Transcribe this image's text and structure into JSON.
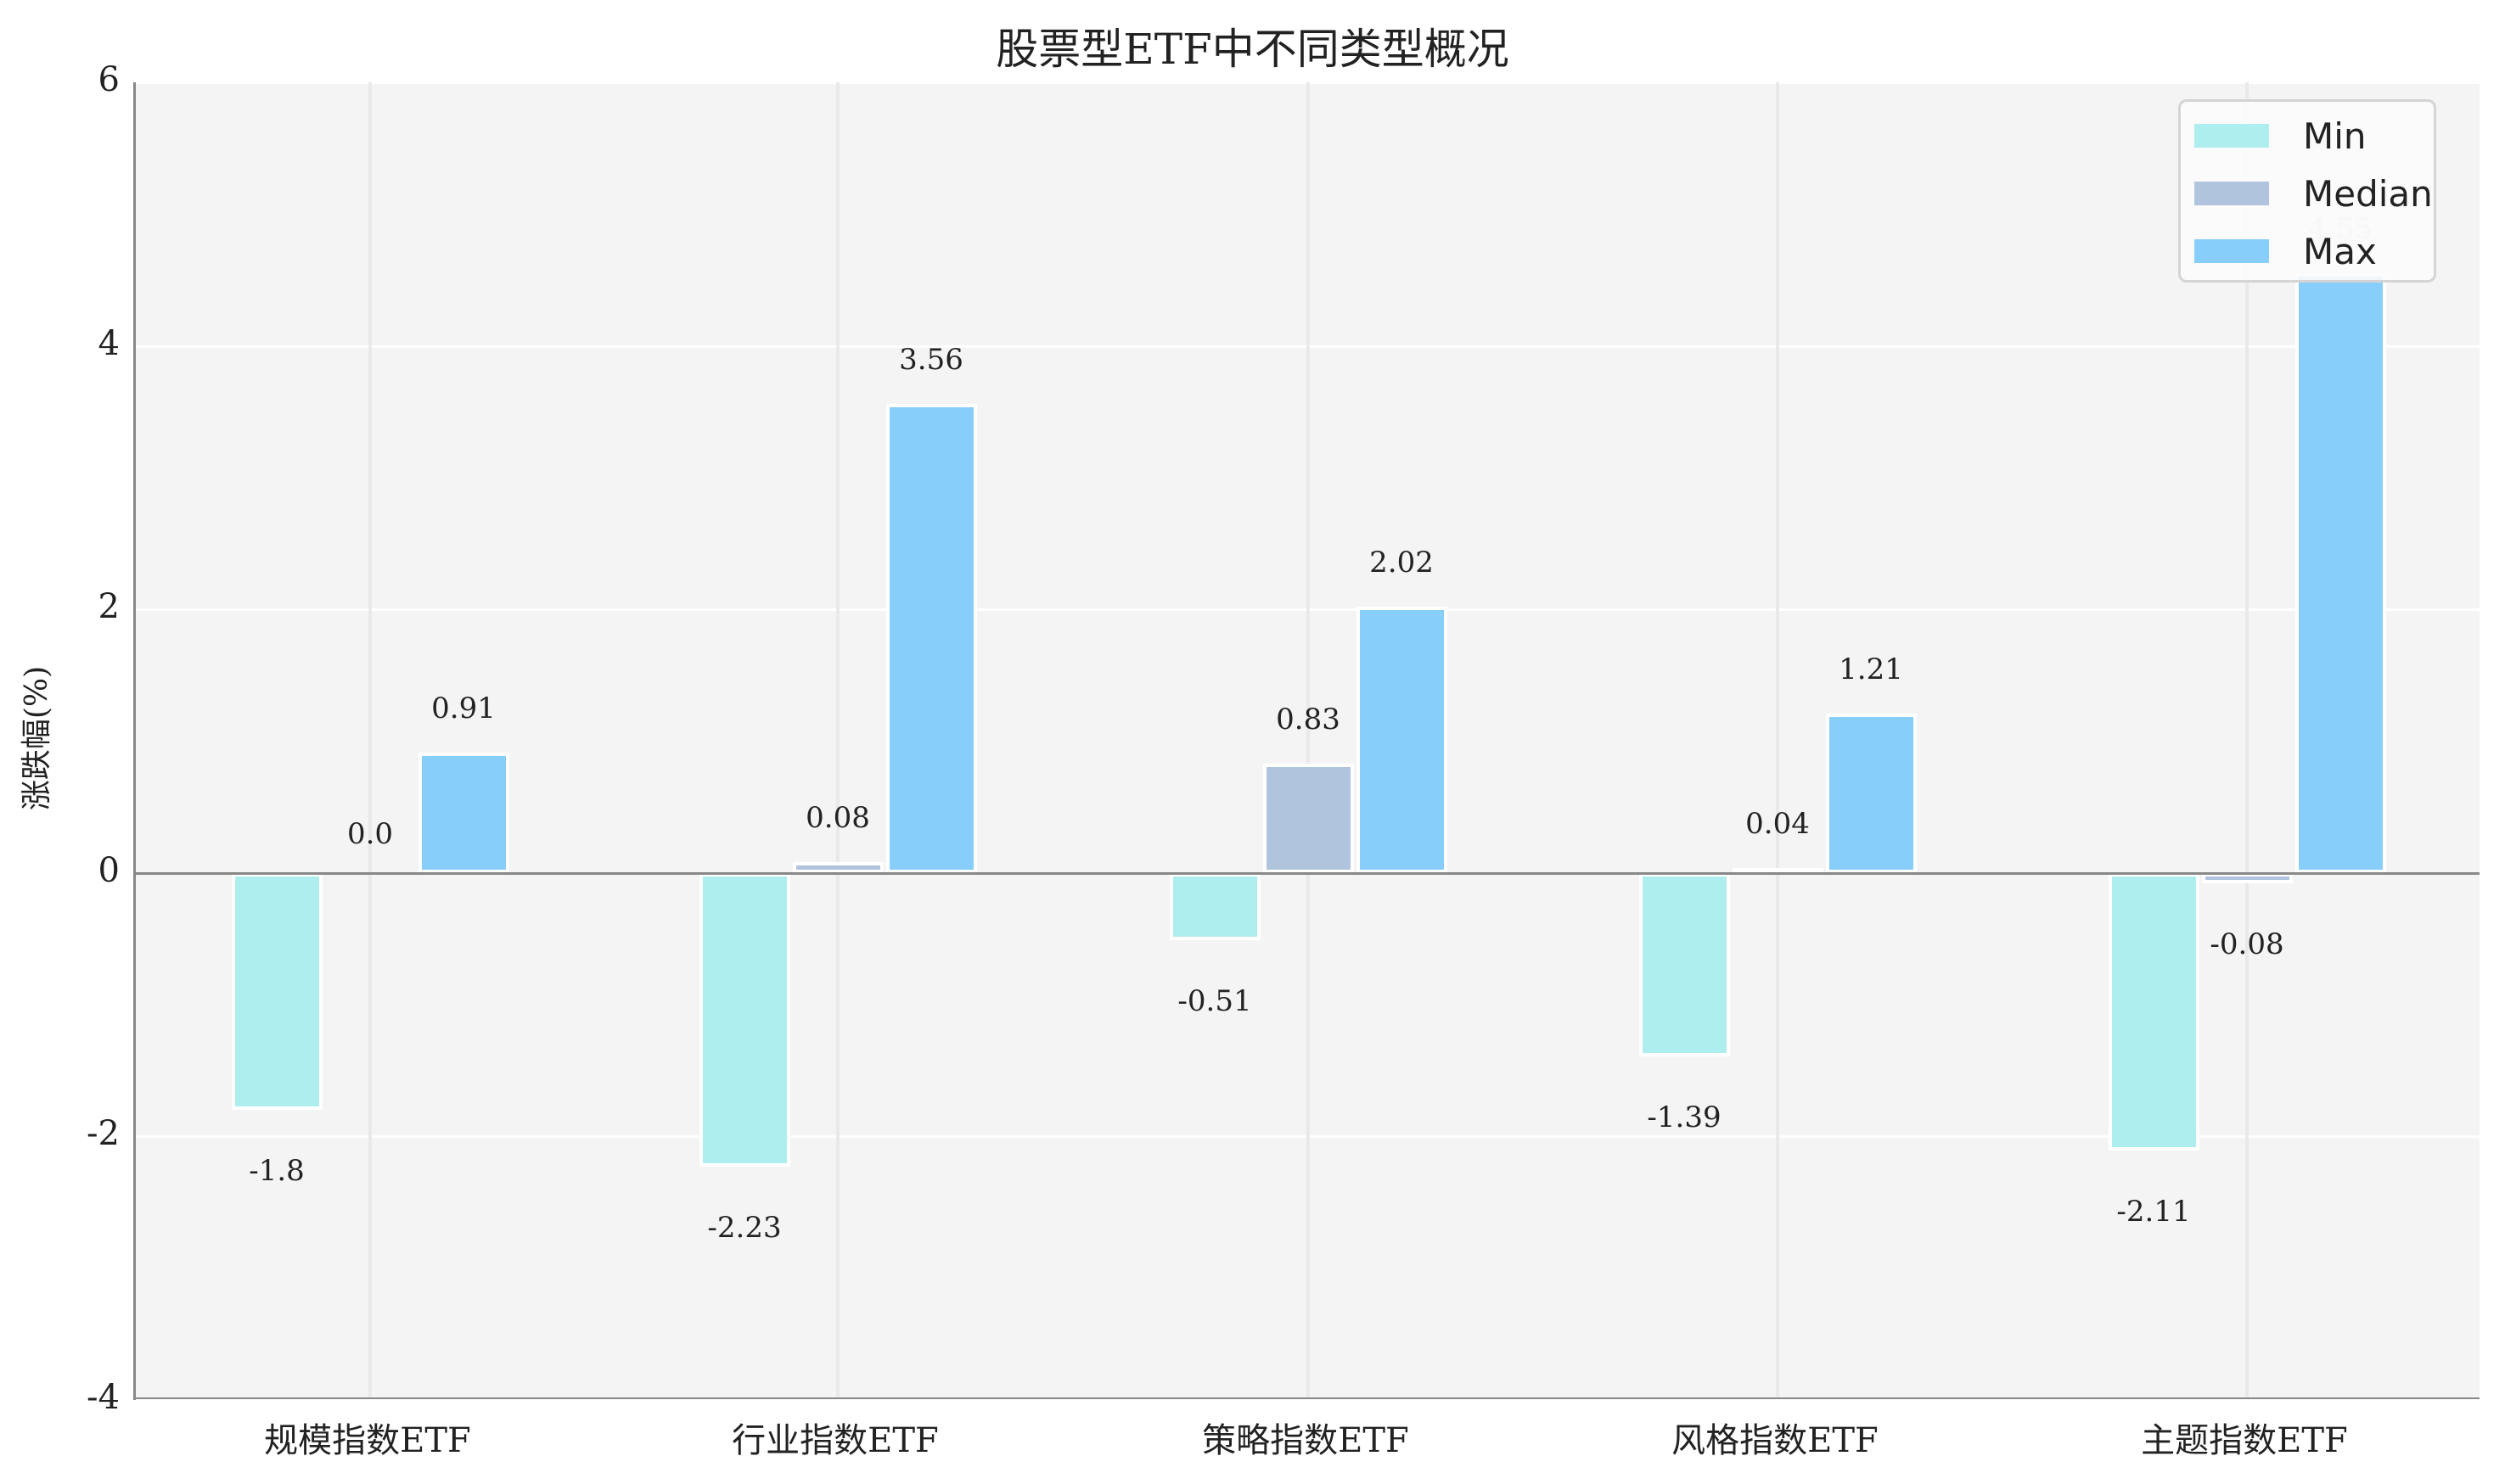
{
  "title": "股票型ETF中不同类型概况",
  "ylabel": "涨跌幅(%)",
  "legend": [
    {
      "label": "Min",
      "color": "#afeeee"
    },
    {
      "label": "Median",
      "color": "#b0c4de"
    },
    {
      "label": "Max",
      "color": "#87cefa"
    }
  ],
  "yticks": [
    "6",
    "4",
    "2",
    "0",
    "-2",
    "-4"
  ],
  "categories": [
    "规模指数ETF",
    "行业指数ETF",
    "策略指数ETF",
    "风格指数ETF",
    "主题指数ETF"
  ],
  "chart_data": {
    "type": "bar",
    "title": "股票型ETF中不同类型概况",
    "xlabel": "",
    "ylabel": "涨跌幅(%)",
    "ylim": [
      -4,
      6
    ],
    "categories": [
      "规模指数ETF",
      "行业指数ETF",
      "策略指数ETF",
      "风格指数ETF",
      "主题指数ETF"
    ],
    "series": [
      {
        "name": "Min",
        "color": "#afeeee",
        "values": [
          -1.8,
          -2.23,
          -0.51,
          -1.39,
          -2.11
        ]
      },
      {
        "name": "Median",
        "color": "#b0c4de",
        "values": [
          0.0,
          0.08,
          0.83,
          0.04,
          -0.08
        ]
      },
      {
        "name": "Max",
        "color": "#87cefa",
        "values": [
          0.91,
          3.56,
          2.02,
          1.21,
          4.55
        ]
      }
    ],
    "value_labels": [
      [
        "-1.8",
        "0.0",
        "0.91"
      ],
      [
        "-2.23",
        "0.08",
        "3.56"
      ],
      [
        "-0.51",
        "0.83",
        "2.02"
      ],
      [
        "-1.39",
        "0.04",
        "1.21"
      ],
      [
        "-2.11",
        "-0.08",
        "4.55"
      ]
    ],
    "grid": true,
    "legend_position": "upper right"
  }
}
